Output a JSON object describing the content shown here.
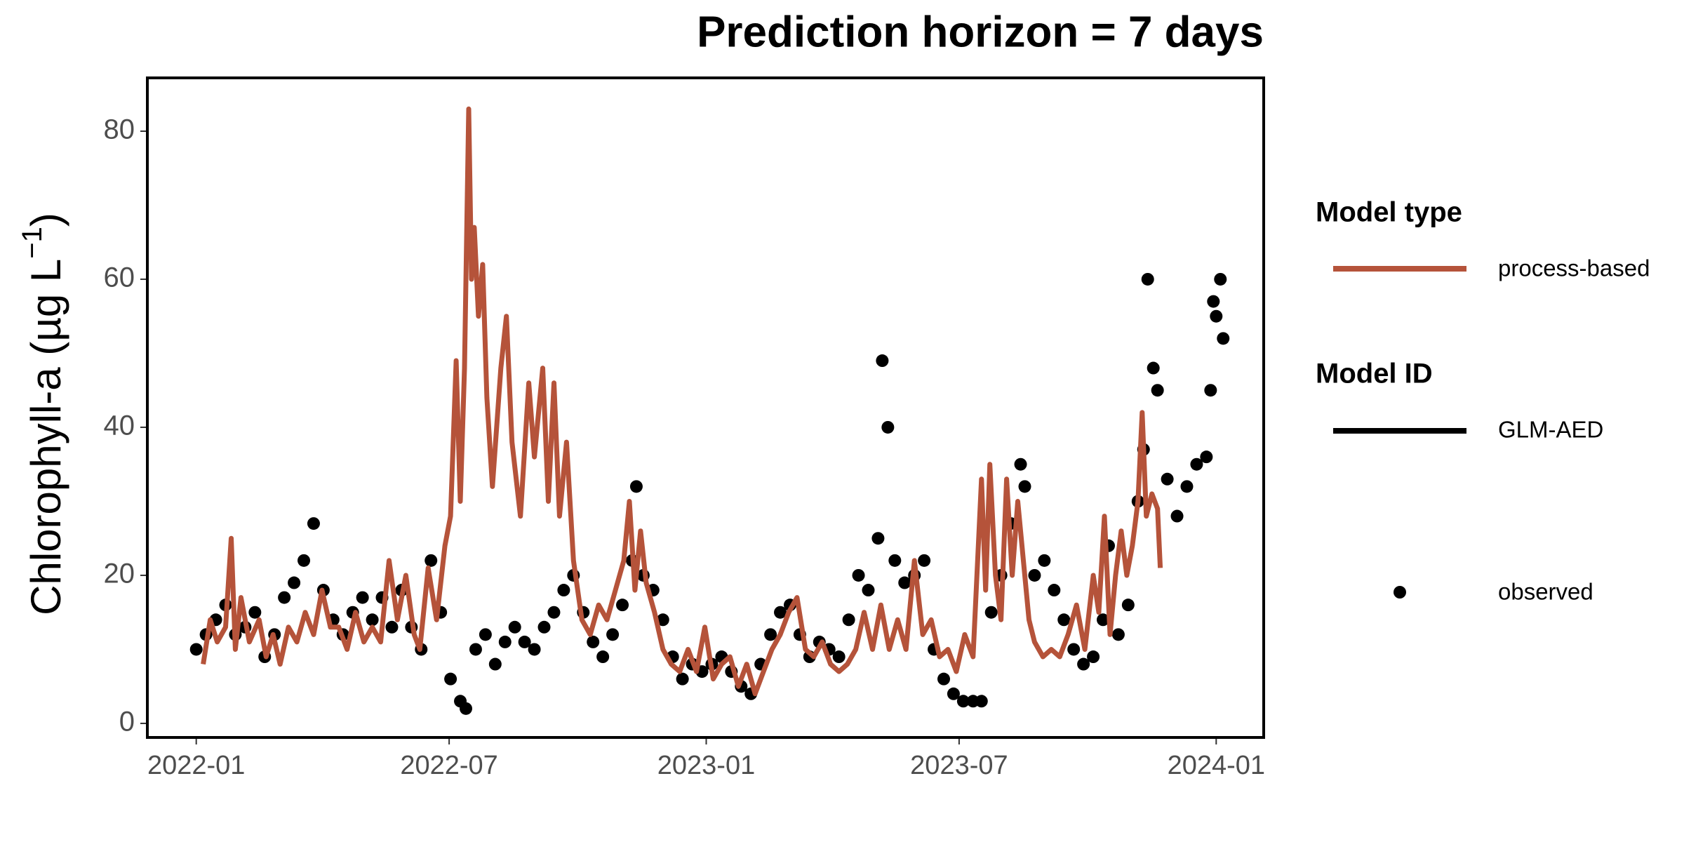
{
  "chart_data": {
    "type": "line",
    "title": "Prediction horizon = 7 days",
    "ylabel": {
      "text": "Chlorophyll-a (µg L",
      "superscript": "−1",
      "close": ")"
    },
    "xlim": [
      -35,
      764
    ],
    "ylim": [
      -1.9,
      87.2
    ],
    "xticks": [
      {
        "value": 0,
        "label": "2022-01"
      },
      {
        "value": 181,
        "label": "2022-07"
      },
      {
        "value": 365,
        "label": "2023-01"
      },
      {
        "value": 546,
        "label": "2023-07"
      },
      {
        "value": 730,
        "label": "2024-01"
      }
    ],
    "yticks": [
      0,
      20,
      40,
      60,
      80
    ],
    "grid": false,
    "series": [
      {
        "name": "process-based",
        "color": "#b5533a",
        "kind": "line",
        "x": [
          5,
          10,
          15,
          21,
          25,
          28,
          32,
          38,
          45,
          50,
          55,
          60,
          66,
          72,
          78,
          84,
          90,
          96,
          102,
          108,
          114,
          120,
          126,
          132,
          138,
          144,
          150,
          156,
          160,
          166,
          172,
          178,
          182,
          186,
          189,
          192,
          195,
          197,
          199,
          202,
          205,
          208,
          212,
          218,
          222,
          226,
          232,
          238,
          242,
          248,
          252,
          256,
          260,
          265,
          270,
          276,
          282,
          288,
          294,
          300,
          306,
          310,
          314,
          318,
          322,
          328,
          334,
          340,
          346,
          352,
          358,
          364,
          370,
          376,
          382,
          388,
          394,
          400,
          406,
          412,
          418,
          424,
          430,
          436,
          442,
          448,
          454,
          460,
          466,
          472,
          478,
          484,
          490,
          496,
          502,
          508,
          514,
          520,
          526,
          532,
          538,
          544,
          550,
          556,
          562,
          565,
          568,
          572,
          576,
          580,
          584,
          588,
          592,
          596,
          600,
          606,
          612,
          618,
          624,
          630,
          636,
          642,
          646,
          650,
          654,
          658,
          662,
          666,
          670,
          674,
          677,
          680,
          684,
          688,
          690
        ],
        "values": [
          8,
          14,
          11,
          13,
          25,
          10,
          17,
          11,
          14,
          9,
          12,
          8,
          13,
          11,
          15,
          12,
          18,
          13,
          13,
          10,
          15,
          11,
          13,
          11,
          22,
          14,
          20,
          12,
          10,
          21,
          14,
          24,
          28,
          49,
          30,
          48,
          83,
          60,
          67,
          55,
          62,
          44,
          32,
          48,
          55,
          38,
          28,
          46,
          36,
          48,
          30,
          46,
          28,
          38,
          22,
          14,
          12,
          16,
          14,
          18,
          22,
          30,
          18,
          26,
          19,
          15,
          10,
          8,
          7,
          10,
          7,
          13,
          6,
          8,
          9,
          5,
          8,
          4,
          7,
          10,
          12,
          15,
          17,
          10,
          9,
          11,
          8,
          7,
          8,
          10,
          15,
          10,
          16,
          10,
          14,
          10,
          22,
          12,
          14,
          9,
          10,
          7,
          12,
          9,
          33,
          18,
          35,
          20,
          14,
          33,
          20,
          30,
          22,
          14,
          11,
          9,
          10,
          9,
          12,
          16,
          10,
          20,
          15,
          28,
          12,
          20,
          26,
          20,
          24,
          30,
          42,
          28,
          31,
          29,
          21
        ]
      },
      {
        "name": "observed",
        "color": "#000000",
        "kind": "point",
        "x": [
          0,
          7,
          14,
          21,
          28,
          35,
          42,
          49,
          56,
          63,
          70,
          77,
          84,
          91,
          98,
          105,
          112,
          119,
          126,
          133,
          140,
          147,
          154,
          161,
          168,
          175,
          182,
          189,
          193,
          200,
          207,
          214,
          221,
          228,
          235,
          242,
          249,
          256,
          263,
          270,
          277,
          284,
          291,
          298,
          305,
          312,
          315,
          320,
          327,
          334,
          341,
          348,
          355,
          362,
          369,
          376,
          383,
          390,
          397,
          404,
          411,
          418,
          425,
          432,
          439,
          446,
          453,
          460,
          467,
          474,
          481,
          488,
          491,
          495,
          500,
          507,
          514,
          521,
          528,
          535,
          542,
          549,
          556,
          562,
          569,
          576,
          583,
          590,
          593,
          600,
          607,
          614,
          621,
          628,
          635,
          642,
          649,
          653,
          660,
          667,
          674,
          678,
          681,
          685,
          688,
          695,
          702,
          709,
          716,
          723,
          726,
          728,
          730,
          733,
          735
        ],
        "values": [
          10,
          12,
          14,
          16,
          12,
          13,
          15,
          9,
          12,
          17,
          19,
          22,
          27,
          18,
          14,
          12,
          15,
          17,
          14,
          17,
          13,
          18,
          13,
          10,
          22,
          15,
          6,
          3,
          2,
          10,
          12,
          8,
          11,
          13,
          11,
          10,
          13,
          15,
          18,
          20,
          15,
          11,
          9,
          12,
          16,
          22,
          32,
          20,
          18,
          14,
          9,
          6,
          8,
          7,
          8,
          9,
          7,
          5,
          4,
          8,
          12,
          15,
          16,
          12,
          9,
          11,
          10,
          9,
          14,
          20,
          18,
          25,
          49,
          40,
          22,
          19,
          20,
          22,
          10,
          6,
          4,
          3,
          3,
          3,
          15,
          20,
          27,
          35,
          32,
          20,
          22,
          18,
          14,
          10,
          8,
          9,
          14,
          24,
          12,
          16,
          30,
          37,
          60,
          48,
          45,
          33,
          28,
          32,
          35,
          36,
          45,
          57,
          55,
          60,
          52
        ]
      }
    ],
    "legends": [
      {
        "title": "Model type"
      },
      {
        "title": "Model ID",
        "entry": "GLM-AED",
        "color": "#000000"
      }
    ]
  }
}
